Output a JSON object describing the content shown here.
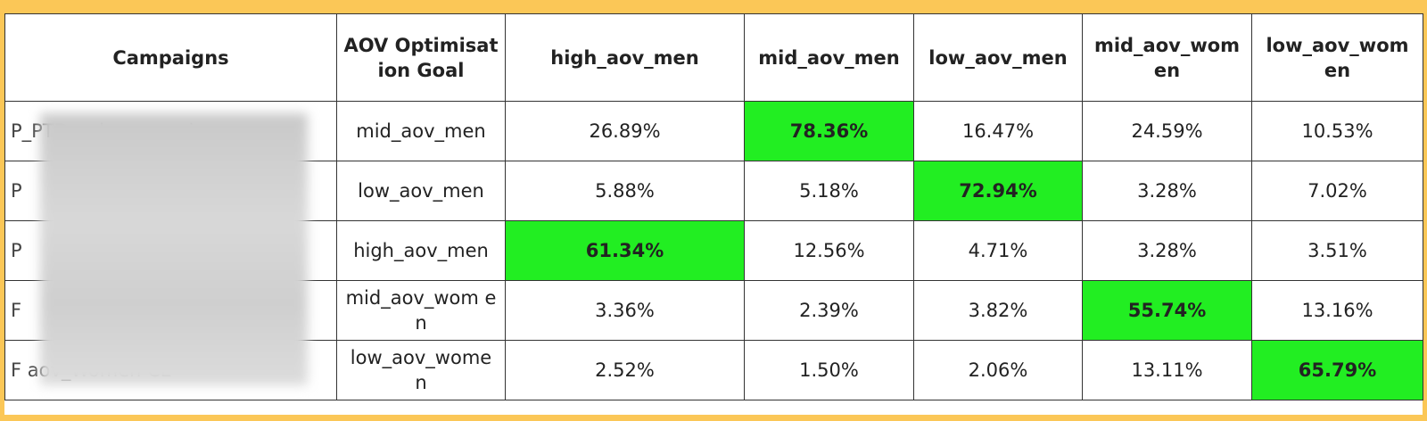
{
  "table": {
    "header": [
      "Campaigns",
      "AOV Optimisation Goal",
      "high_aov_men",
      "mid_aov_men",
      "low_aov_men",
      "mid_aov_wom en",
      "low_aov_wom en"
    ],
    "highlight_color": "#22ee22",
    "rows": [
      {
        "campaign": "P_PTD_sale_campaign_men",
        "goal": "mid_aov_men",
        "values": [
          "26.89%",
          "78.36%",
          "16.47%",
          "24.59%",
          "10.53%"
        ],
        "highlight": 1
      },
      {
        "campaign": "P",
        "goal": "low_aov_men",
        "values": [
          "5.88%",
          "5.18%",
          "72.94%",
          "3.28%",
          "7.02%"
        ],
        "highlight": 2
      },
      {
        "campaign": "P",
        "goal": "high_aov_men",
        "values": [
          "61.34%",
          "12.56%",
          "4.71%",
          "3.28%",
          "3.51%"
        ],
        "highlight": 0
      },
      {
        "campaign": "F",
        "goal": "mid_aov_wom en",
        "values": [
          "3.36%",
          "2.39%",
          "3.82%",
          "55.74%",
          "13.16%"
        ],
        "highlight": 3
      },
      {
        "campaign": "F aov_Women CL",
        "goal": "low_aov_wome n",
        "values": [
          "2.52%",
          "1.50%",
          "2.06%",
          "13.11%",
          "65.79%"
        ],
        "highlight": 4
      }
    ]
  }
}
